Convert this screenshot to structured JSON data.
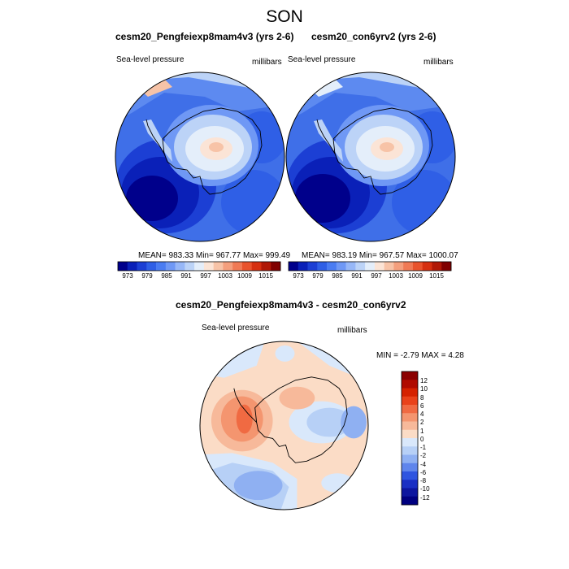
{
  "figure": {
    "title": "SON"
  },
  "panels": [
    {
      "title": "cesm20_Pengfeiexp8mam4v3 (yrs 2-6)",
      "variable": "Sea-level pressure",
      "units": "millibars",
      "stats": "MEAN= 983.33  Min= 967.77  Max= 999.49",
      "mean": 983.33,
      "min": 967.77,
      "max": 999.49
    },
    {
      "title": "cesm20_con6yrv2 (yrs 2-6)",
      "variable": "Sea-level pressure",
      "units": "millibars",
      "stats": "MEAN= 983.19  Min= 967.57  Max= 1000.07",
      "mean": 983.19,
      "min": 967.57,
      "max": 1000.07
    },
    {
      "title": "cesm20_Pengfeiexp8mam4v3 - cesm20_con6yrv2",
      "variable": "Sea-level pressure",
      "units": "millibars",
      "stats": "MIN =  -2.79 MAX =   4.28",
      "min": -2.79,
      "max": 4.28
    }
  ],
  "colorbars": {
    "slp": {
      "labels": [
        "973",
        "979",
        "985",
        "991",
        "997",
        "1003",
        "1009",
        "1015"
      ],
      "colors": [
        "#00008b",
        "#0a20b8",
        "#1c3fd4",
        "#2f5fe6",
        "#4a7cf2",
        "#6f98f5",
        "#97b7f7",
        "#bcd3f7",
        "#e4eefa",
        "#fbe4d6",
        "#f7c3a7",
        "#f49f7d",
        "#f07a55",
        "#e9532c",
        "#d62f0f",
        "#b01806",
        "#800000"
      ]
    },
    "diff": {
      "labels": [
        "12",
        "10",
        "8",
        "6",
        "4",
        "2",
        "1",
        "0",
        "-1",
        "-2",
        "-4",
        "-6",
        "-8",
        "-10",
        "-12"
      ],
      "colors": [
        "#8b0000",
        "#b00b00",
        "#d52200",
        "#e9421a",
        "#f06a42",
        "#f4956f",
        "#f7b99a",
        "#fbdcc6",
        "#d9e8fb",
        "#b7d0f6",
        "#8fb0f2",
        "#5f85ec",
        "#2f55e0",
        "#1a2fc4",
        "#0d169f",
        "#000080"
      ]
    }
  },
  "chart_data": [
    {
      "type": "heatmap",
      "projection": "south-polar-stereographic",
      "title": "cesm20_Pengfeiexp8mam4v3 (yrs 2-6)",
      "variable": "Sea-level pressure",
      "units": "millibars",
      "mean": 983.33,
      "min": 967.77,
      "max": 999.49,
      "contour_levels": [
        973,
        976,
        979,
        982,
        985,
        988,
        991,
        994,
        997,
        1000,
        1003,
        1006,
        1009,
        1012,
        1015
      ]
    },
    {
      "type": "heatmap",
      "projection": "south-polar-stereographic",
      "title": "cesm20_con6yrv2 (yrs 2-6)",
      "variable": "Sea-level pressure",
      "units": "millibars",
      "mean": 983.19,
      "min": 967.57,
      "max": 1000.07,
      "contour_levels": [
        973,
        976,
        979,
        982,
        985,
        988,
        991,
        994,
        997,
        1000,
        1003,
        1006,
        1009,
        1012,
        1015
      ]
    },
    {
      "type": "heatmap",
      "projection": "south-polar-stereographic",
      "title": "cesm20_Pengfeiexp8mam4v3 - cesm20_con6yrv2",
      "variable": "Sea-level pressure",
      "units": "millibars",
      "min": -2.79,
      "max": 4.28,
      "contour_levels": [
        -12,
        -10,
        -8,
        -6,
        -4,
        -2,
        -1,
        0,
        1,
        2,
        4,
        6,
        8,
        10,
        12
      ]
    }
  ]
}
